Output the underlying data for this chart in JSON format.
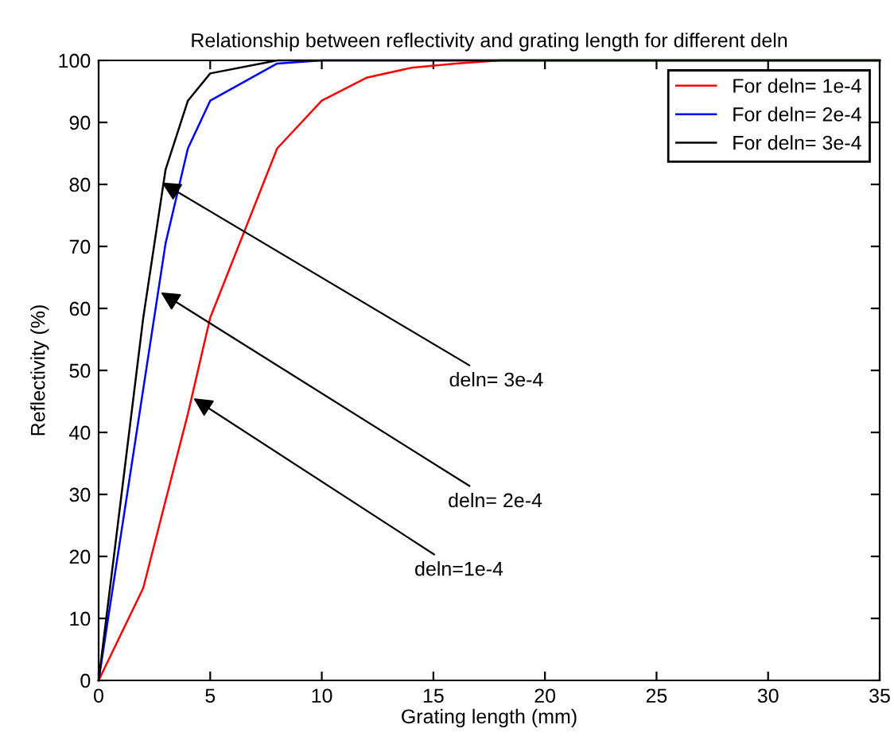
{
  "chart_data": {
    "type": "line",
    "title": "Relationship between reflectivity and grating length for different deln",
    "xlabel": "Grating length (mm)",
    "ylabel": "Reflectivity (%)",
    "series": [
      {
        "name": "For deln= 1e-4",
        "color": "#ff0000",
        "x": [
          0,
          2,
          3,
          4,
          5,
          8,
          10,
          12,
          14,
          16,
          18,
          35
        ],
        "values": [
          0,
          14.9,
          29,
          43,
          58.5,
          85.8,
          93.5,
          97.2,
          98.8,
          99.5,
          100,
          100
        ]
      },
      {
        "name": "For deln= 2e-4",
        "color": "#0000ff",
        "x": [
          0,
          3,
          4,
          5,
          8,
          10,
          35
        ],
        "values": [
          0,
          70.5,
          85.8,
          93.5,
          99.5,
          100,
          100
        ]
      },
      {
        "name": "For deln= 3e-4",
        "color": "#000000",
        "x": [
          0,
          2,
          3,
          4,
          5,
          8,
          35
        ],
        "values": [
          0,
          58.5,
          82.4,
          93.5,
          97.9,
          100,
          100
        ]
      }
    ],
    "annotations": [
      {
        "text": "deln= 3e-4",
        "x": 2.83,
        "y": 80.3
      },
      {
        "text": "deln= 2e-4",
        "x": 2.78,
        "y": 62.6
      },
      {
        "text": "deln=1e-4",
        "x": 4.25,
        "y": 45.5
      }
    ],
    "xlim": [
      0,
      35
    ],
    "xticks": [
      0,
      5,
      10,
      15,
      20,
      25,
      30,
      35
    ],
    "ylim": [
      0,
      100
    ],
    "yticks": [
      0,
      10,
      20,
      30,
      40,
      50,
      60,
      70,
      80,
      90,
      100
    ],
    "grid": false,
    "legend": "top right",
    "line_style": "solid",
    "marker": "none"
  }
}
